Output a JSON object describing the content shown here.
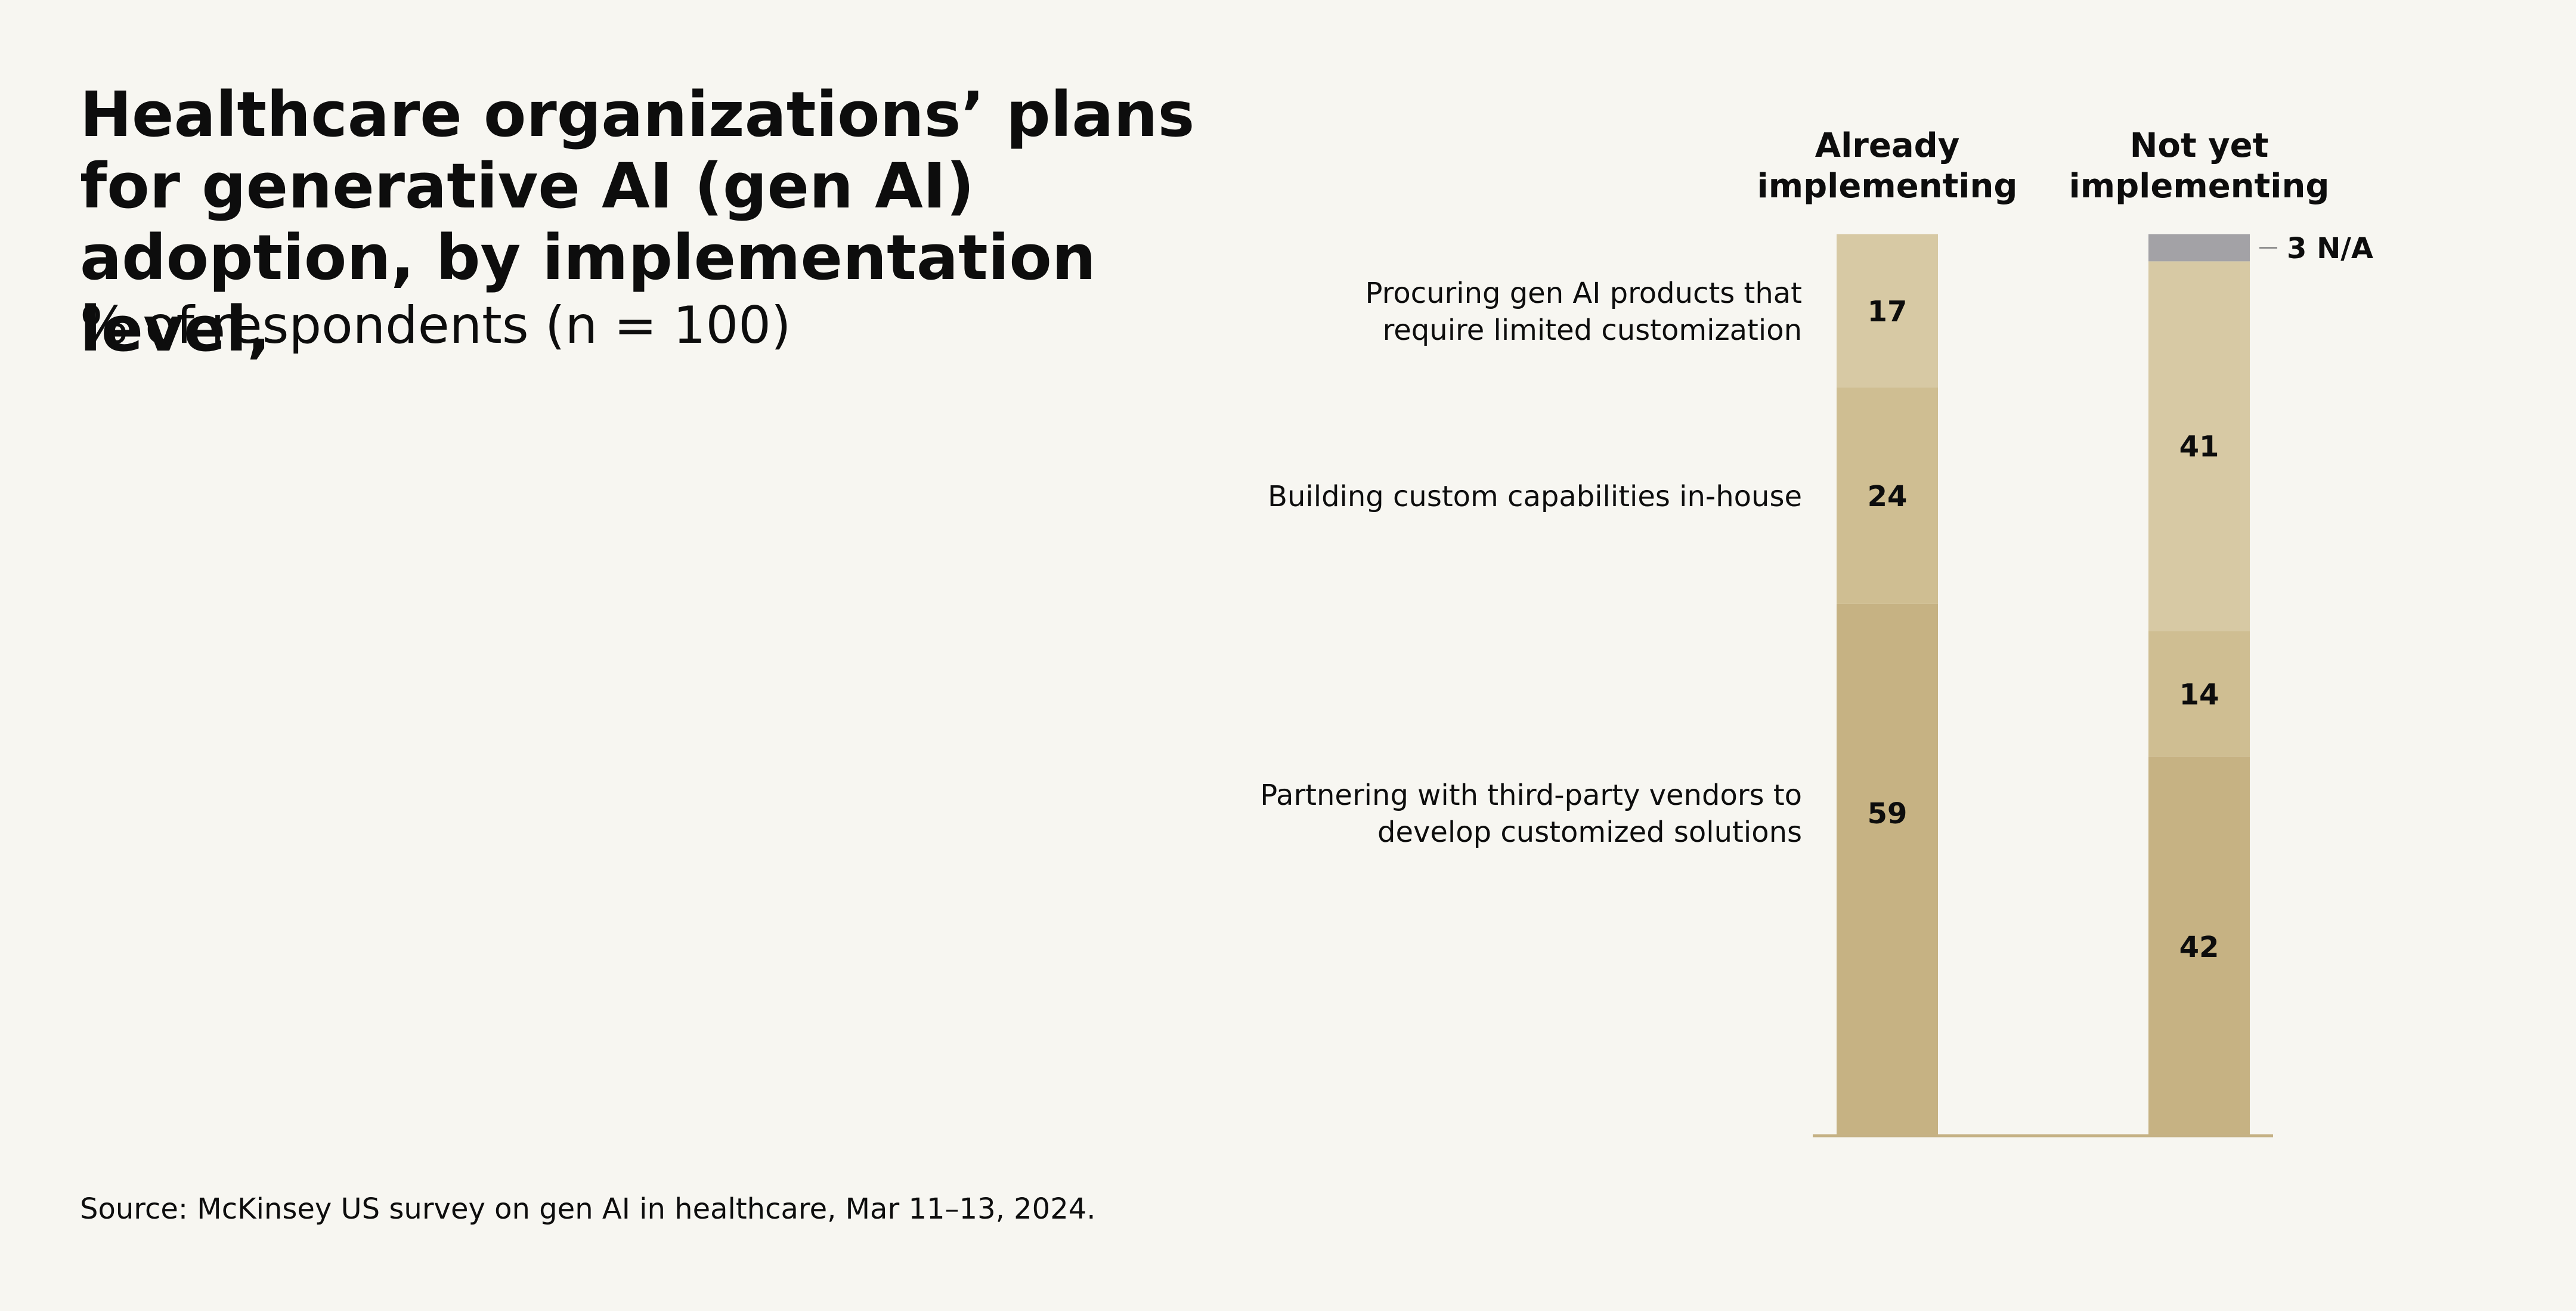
{
  "title": "Healthcare organizations’ plans for generative AI (gen AI) adoption, by implementation level,",
  "subtitle": "% of respondents (n = 100)",
  "source": "Source: McKinsey US survey on gen AI in healthcare, Mar 11–13, 2024.",
  "colors": {
    "background": "#f7f6f1",
    "procuring": "#d7c9a4",
    "building": "#cfbe92",
    "partnering": "#c6b283",
    "na": "#a3a2a6",
    "axis": "#c5b184",
    "text": "#0d0d0d"
  },
  "chart_data": {
    "type": "bar",
    "stacked": true,
    "orientation": "vertical",
    "categories": [
      "Already implementing",
      "Not yet implementing"
    ],
    "category_lines": [
      [
        "Already",
        "implementing"
      ],
      [
        "Not yet",
        "implementing"
      ]
    ],
    "series": [
      {
        "name": "Partnering with third-party vendors to develop customized solutions",
        "label_lines": [
          "Partnering with third-party vendors to",
          "develop customized solutions"
        ],
        "values": [
          59,
          42
        ],
        "color": "#c6b283"
      },
      {
        "name": "Building custom capabilities in-house",
        "label_lines": [
          "Building custom capabilities in-house"
        ],
        "values": [
          24,
          14
        ],
        "color": "#cfbe92"
      },
      {
        "name": "Procuring gen AI products that require limited customization",
        "label_lines": [
          "Procuring gen AI products that",
          "require limited customization"
        ],
        "values": [
          17,
          41
        ],
        "color": "#d7c9a4"
      },
      {
        "name": "N/A",
        "label_lines": [],
        "values": [
          0,
          3
        ],
        "color": "#a3a2a6"
      }
    ],
    "na_label": "3 N/A",
    "ylim": [
      0,
      100
    ],
    "grid": false,
    "legend": "left of first bar"
  }
}
